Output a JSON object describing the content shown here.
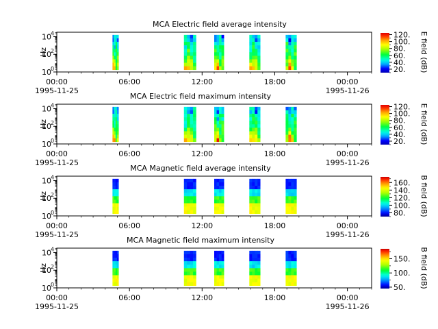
{
  "chart_data": [
    {
      "type": "heatmap",
      "title": "MCA  Electric field average intensity",
      "ylabel": "Hz",
      "colorbar_label": "E field (dB)",
      "colorbar_range": [
        10,
        125
      ],
      "colorbar_ticks": [
        20,
        40,
        60,
        80,
        100,
        120
      ],
      "colorbar_tick_labels": [
        "20.",
        "40.",
        "60.",
        "80.",
        "100.",
        "120."
      ],
      "ylim_exp": [
        0,
        4.5
      ],
      "yticks_exp": [
        0,
        2,
        4
      ],
      "kind": "electric",
      "palette": "e",
      "blocks": [
        [
          4.6,
          5.1
        ],
        [
          10.5,
          11.5
        ],
        [
          13.0,
          13.8
        ],
        [
          15.9,
          16.8
        ],
        [
          18.9,
          19.8
        ]
      ]
    },
    {
      "type": "heatmap",
      "title": "MCA  Electric field maximum intensity",
      "ylabel": "Hz",
      "colorbar_label": "E field (dB)",
      "colorbar_range": [
        10,
        125
      ],
      "colorbar_ticks": [
        20,
        40,
        60,
        80,
        100,
        120
      ],
      "colorbar_tick_labels": [
        "20.",
        "40.",
        "60.",
        "80.",
        "100.",
        "120."
      ],
      "ylim_exp": [
        0,
        4.5
      ],
      "yticks_exp": [
        0,
        2,
        4
      ],
      "kind": "electric",
      "palette": "e",
      "blocks": [
        [
          4.6,
          5.1
        ],
        [
          10.5,
          11.5
        ],
        [
          13.0,
          13.8
        ],
        [
          15.9,
          16.8
        ],
        [
          18.9,
          19.8
        ]
      ]
    },
    {
      "type": "heatmap",
      "title": "MCA  Magnetic field average intensity",
      "ylabel": "Hz",
      "colorbar_label": "B field (dB)",
      "colorbar_range": [
        70,
        175
      ],
      "colorbar_ticks": [
        80,
        100,
        120,
        140,
        160
      ],
      "colorbar_tick_labels": [
        "80.",
        "100.",
        "120.",
        "140.",
        "160."
      ],
      "ylim_exp": [
        0,
        4.5
      ],
      "yticks_exp": [
        0,
        2,
        4
      ],
      "kind": "magnetic",
      "palette": "b",
      "blocks": [
        [
          4.6,
          5.1
        ],
        [
          10.5,
          11.5
        ],
        [
          13.0,
          13.8
        ],
        [
          15.9,
          16.8
        ],
        [
          18.9,
          19.8
        ]
      ]
    },
    {
      "type": "heatmap",
      "title": "MCA  Magnetic field maximum intensity",
      "ylabel": "Hz",
      "colorbar_label": "B field (dB)",
      "colorbar_range": [
        45,
        185
      ],
      "colorbar_ticks": [
        50,
        100,
        150
      ],
      "colorbar_tick_labels": [
        "50.",
        "100.",
        "150."
      ],
      "ylim_exp": [
        0,
        4.5
      ],
      "yticks_exp": [
        0,
        2,
        4
      ],
      "kind": "magnetic",
      "palette": "b",
      "blocks": [
        [
          4.6,
          5.1
        ],
        [
          10.5,
          11.5
        ],
        [
          13.0,
          13.8
        ],
        [
          15.9,
          16.8
        ],
        [
          18.9,
          19.8
        ]
      ]
    }
  ],
  "xaxis": {
    "range_hours": [
      0,
      26
    ],
    "major_ticks_hours": [
      0,
      6,
      12,
      18,
      24
    ],
    "minor_step_hours": 1,
    "tick_labels": [
      "00:00",
      "06:00",
      "12:00",
      "18:00",
      "00:00"
    ],
    "start_date": "1995-11-25",
    "end_date": "1995-11-26"
  }
}
